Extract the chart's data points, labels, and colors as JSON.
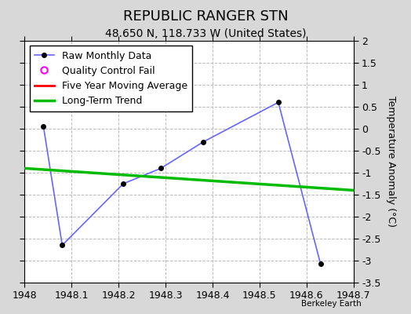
{
  "title": "REPUBLIC RANGER STN",
  "subtitle": "48.650 N, 118.733 W (United States)",
  "ylabel": "Temperature Anomaly (°C)",
  "watermark": "Berkeley Earth",
  "xlim": [
    1948.0,
    1948.7
  ],
  "ylim": [
    -3.5,
    2.0
  ],
  "xticks": [
    1948.0,
    1948.1,
    1948.2,
    1948.3,
    1948.4,
    1948.5,
    1948.6,
    1948.7
  ],
  "yticks_left": [
    -3.5,
    -3.0,
    -2.5,
    -2.0,
    -1.5,
    -1.0,
    -0.5,
    0.0,
    0.5,
    1.0,
    1.5,
    2.0
  ],
  "ytick_labels_left": [
    "-3.5",
    "-3",
    "-2.5",
    "-2",
    "-1.5",
    "-1",
    "-0.5",
    "0",
    "0.5",
    "1",
    "1.5",
    "2"
  ],
  "raw_x": [
    1948.04,
    1948.08,
    1948.21,
    1948.29,
    1948.38,
    1948.54,
    1948.63
  ],
  "raw_y": [
    0.05,
    -2.65,
    -1.25,
    -0.9,
    -0.3,
    0.6,
    -3.08
  ],
  "trend_x": [
    1948.0,
    1948.7
  ],
  "trend_y": [
    -0.9,
    -1.4
  ],
  "raw_line_color": "#6666ff",
  "raw_marker_color": "#000000",
  "trend_color": "#00bb00",
  "moving_avg_color": "#ff0000",
  "qc_fail_color": "#ff00ff",
  "fig_bg_color": "#d8d8d8",
  "plot_bg_color": "#ffffff",
  "grid_color": "#bbbbbb",
  "title_fontsize": 13,
  "subtitle_fontsize": 10,
  "tick_fontsize": 9,
  "ylabel_fontsize": 9,
  "legend_fontsize": 9
}
